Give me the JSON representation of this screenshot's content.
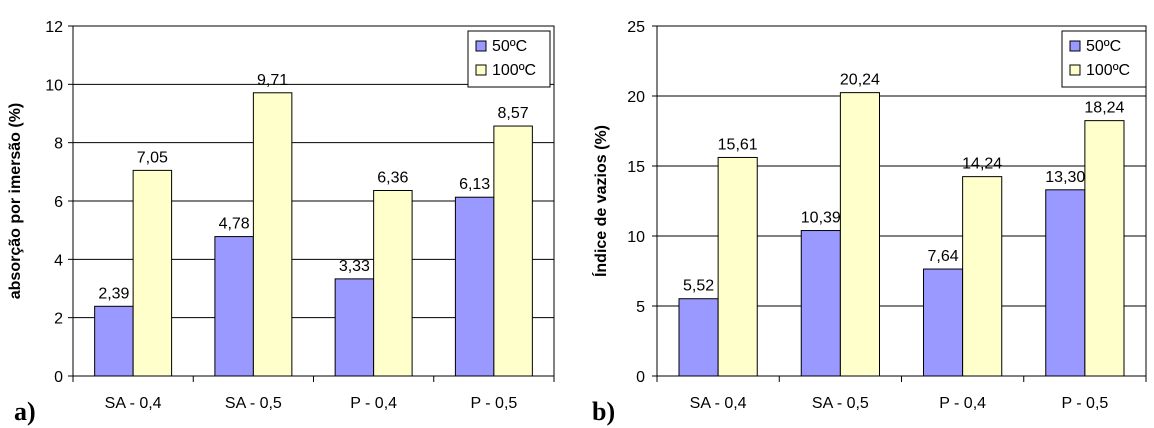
{
  "colors": {
    "series_50": "#9999ff",
    "series_100": "#ffffcc",
    "bar_stroke": "#000000",
    "grid": "#000000",
    "axis": "#000000"
  },
  "chart_data": [
    {
      "type": "bar",
      "panel_label": "a)",
      "title": "",
      "ylabel": "absorção por imersão (%)",
      "xlabel": "",
      "categories": [
        "SA - 0,4",
        "SA - 0,5",
        "P - 0,4",
        "P - 0,5"
      ],
      "ylim": [
        0,
        12
      ],
      "yticks": [
        0,
        2,
        4,
        6,
        8,
        10,
        12
      ],
      "ytick_labels": [
        "0",
        "2",
        "4",
        "6",
        "8",
        "10",
        "12"
      ],
      "grid": true,
      "legend_position": "top-right",
      "series": [
        {
          "name": "50ºC",
          "values": [
            2.39,
            4.78,
            3.33,
            6.13
          ],
          "labels": [
            "2,39",
            "4,78",
            "3,33",
            "6,13"
          ]
        },
        {
          "name": "100ºC",
          "values": [
            7.05,
            9.71,
            6.36,
            8.57
          ],
          "labels": [
            "7,05",
            "9,71",
            "6,36",
            "8,57"
          ]
        }
      ]
    },
    {
      "type": "bar",
      "panel_label": "b)",
      "title": "",
      "ylabel": "Índice de vazios (%)",
      "xlabel": "",
      "categories": [
        "SA - 0,4",
        "SA - 0,5",
        "P - 0,4",
        "P - 0,5"
      ],
      "ylim": [
        0,
        25
      ],
      "yticks": [
        0,
        5,
        10,
        15,
        20,
        25
      ],
      "ytick_labels": [
        "0",
        "5",
        "10",
        "15",
        "20",
        "25"
      ],
      "grid": true,
      "legend_position": "top-right",
      "series": [
        {
          "name": "50ºC",
          "values": [
            5.52,
            10.39,
            7.64,
            13.3
          ],
          "labels": [
            "5,52",
            "10,39",
            "7,64",
            "13,30"
          ]
        },
        {
          "name": "100ºC",
          "values": [
            15.61,
            20.24,
            14.24,
            18.24
          ],
          "labels": [
            "15,61",
            "20,24",
            "14,24",
            "18,24"
          ]
        }
      ]
    }
  ]
}
